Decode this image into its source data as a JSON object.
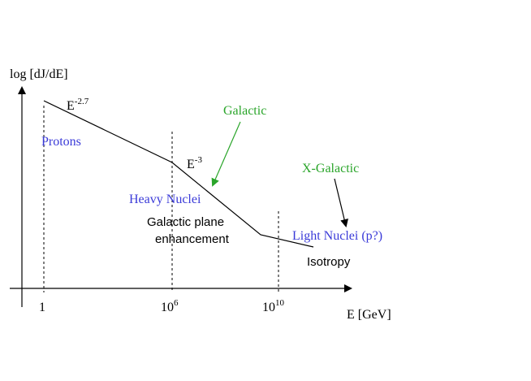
{
  "axes": {
    "y_label": "log [dJ/dE]",
    "x_label": "E [GeV]",
    "ticks": [
      {
        "base": "1",
        "exp": ""
      },
      {
        "base": "10",
        "exp": "6"
      },
      {
        "base": "10",
        "exp": "10"
      }
    ]
  },
  "labels": {
    "slope1_base": "E",
    "slope1_exp": "-2.7",
    "slope2_base": "E",
    "slope2_exp": "-3",
    "protons": "Protons",
    "heavy_nuclei": "Heavy Nuclei",
    "galactic": "Galactic",
    "x_galactic": "X-Galactic",
    "galactic_plane_line1": "Galactic plane",
    "galactic_plane_line2": "enhancement",
    "light_nuclei": "Light Nuclei (p?)",
    "isotropy": "Isotropy"
  },
  "colors": {
    "black": "#000000",
    "blue": "#3a3ad8",
    "green": "#2aa52a"
  }
}
